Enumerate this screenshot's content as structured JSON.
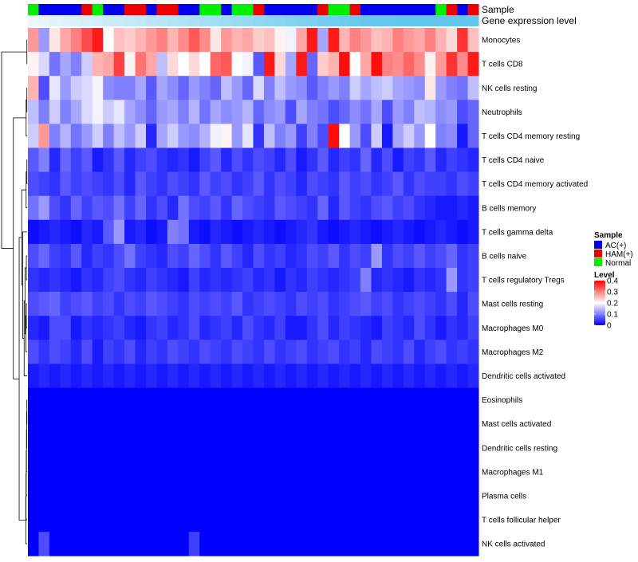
{
  "chart_data": {
    "type": "heatmap",
    "annotation_tracks": [
      "Sample",
      "Gene expression level"
    ],
    "sample_groups": [
      "Normal",
      "AC(+)",
      "AC(+)",
      "AC(+)",
      "AC(+)",
      "HAM(+)",
      "Normal",
      "AC(+)",
      "AC(+)",
      "HAM(+)",
      "HAM(+)",
      "AC(+)",
      "HAM(+)",
      "HAM(+)",
      "AC(+)",
      "AC(+)",
      "Normal",
      "Normal",
      "AC(+)",
      "Normal",
      "Normal",
      "HAM(+)",
      "AC(+)",
      "AC(+)",
      "AC(+)",
      "AC(+)",
      "AC(+)",
      "HAM(+)",
      "Normal",
      "Normal",
      "HAM(+)",
      "AC(+)",
      "AC(+)",
      "AC(+)",
      "AC(+)",
      "AC(+)",
      "AC(+)",
      "AC(+)",
      "Normal",
      "HAM(+)",
      "AC(+)",
      "HAM(+)"
    ],
    "expression_levels": [
      0.05,
      0.08,
      0.11,
      0.14,
      0.17,
      0.2,
      0.23,
      0.26,
      0.29,
      0.32,
      0.35,
      0.38,
      0.41,
      0.44,
      0.47,
      0.5,
      0.53,
      0.56,
      0.59,
      0.62,
      0.65,
      0.68,
      0.71,
      0.74,
      0.77,
      0.8,
      0.83,
      0.86,
      0.89,
      0.92,
      0.95,
      0.97,
      0.98,
      0.98,
      0.99,
      0.99,
      1.0,
      1.0,
      1.0,
      1.0,
      1.0,
      1.0
    ],
    "rows": [
      {
        "label": "Monocytes",
        "mean": 0.25,
        "cells": [
          0.28,
          0.12,
          0.22,
          0.27,
          0.3,
          0.34,
          0.38,
          0.2,
          0.25,
          0.24,
          0.26,
          0.28,
          0.3,
          0.26,
          0.29,
          0.33,
          0.29,
          0.22,
          0.28,
          0.26,
          0.27,
          0.24,
          0.25,
          0.21,
          0.19,
          0.27,
          0.38,
          0.13,
          0.38,
          0.26,
          0.3,
          0.28,
          0.25,
          0.26,
          0.3,
          0.28,
          0.27,
          0.3,
          0.26,
          0.23,
          0.36,
          0.25
        ]
      },
      {
        "label": "T cells CD8",
        "mean": 0.25,
        "cells": [
          0.21,
          0.17,
          0.09,
          0.13,
          0.1,
          0.16,
          0.26,
          0.27,
          0.35,
          0.21,
          0.31,
          0.27,
          0.15,
          0.23,
          0.2,
          0.23,
          0.2,
          0.32,
          0.33,
          0.2,
          0.19,
          0.07,
          0.38,
          0.23,
          0.13,
          0.38,
          0.08,
          0.24,
          0.26,
          0.39,
          0.2,
          0.27,
          0.39,
          0.3,
          0.29,
          0.32,
          0.29,
          0.21,
          0.28,
          0.36,
          0.29,
          0.38
        ]
      },
      {
        "label": "NK cells resting",
        "mean": 0.13,
        "cells": [
          0.26,
          0.06,
          0.18,
          0.12,
          0.16,
          0.17,
          0.19,
          0.11,
          0.1,
          0.1,
          0.13,
          0.07,
          0.13,
          0.11,
          0.08,
          0.12,
          0.1,
          0.08,
          0.15,
          0.12,
          0.08,
          0.17,
          0.1,
          0.15,
          0.12,
          0.11,
          0.07,
          0.1,
          0.12,
          0.1,
          0.16,
          0.13,
          0.15,
          0.16,
          0.13,
          0.12,
          0.11,
          0.22,
          0.12,
          0.1,
          0.09,
          0.15
        ]
      },
      {
        "label": "Neutrophils",
        "mean": 0.13,
        "cells": [
          0.15,
          0.1,
          0.16,
          0.1,
          0.13,
          0.17,
          0.19,
          0.16,
          0.18,
          0.13,
          0.11,
          0.08,
          0.12,
          0.13,
          0.1,
          0.14,
          0.09,
          0.13,
          0.11,
          0.12,
          0.14,
          0.08,
          0.11,
          0.12,
          0.06,
          0.13,
          0.1,
          0.09,
          0.06,
          0.08,
          0.11,
          0.09,
          0.13,
          0.06,
          0.12,
          0.1,
          0.15,
          0.14,
          0.11,
          0.12,
          0.06,
          0.08
        ]
      },
      {
        "label": "T cells CD4 memory resting",
        "mean": 0.12,
        "cells": [
          0.16,
          0.28,
          0.1,
          0.14,
          0.09,
          0.12,
          0.16,
          0.1,
          0.15,
          0.12,
          0.16,
          0.03,
          0.13,
          0.16,
          0.12,
          0.11,
          0.14,
          0.19,
          0.21,
          0.12,
          0.18,
          0.04,
          0.15,
          0.1,
          0.12,
          0.05,
          0.1,
          0.06,
          0.39,
          0.2,
          0.12,
          0.06,
          0.16,
          0.02,
          0.13,
          0.16,
          0.12,
          0.2,
          0.1,
          0.11,
          0.02,
          0.08
        ]
      },
      {
        "label": "T cells CD4 naive",
        "mean": 0.05,
        "cells": [
          0.07,
          0.1,
          0.03,
          0.08,
          0.05,
          0.07,
          0.02,
          0.04,
          0.07,
          0.03,
          0.05,
          0.06,
          0.04,
          0.03,
          0.04,
          0.02,
          0.05,
          0.07,
          0.03,
          0.06,
          0.04,
          0.06,
          0.05,
          0.03,
          0.06,
          0.02,
          0.04,
          0.07,
          0.03,
          0.05,
          0.04,
          0.08,
          0.03,
          0.06,
          0.02,
          0.05,
          0.04,
          0.07,
          0.03,
          0.05,
          0.04,
          0.03
        ]
      },
      {
        "label": "T cells CD4 memory activated",
        "mean": 0.05,
        "cells": [
          0.06,
          0.05,
          0.04,
          0.07,
          0.05,
          0.06,
          0.05,
          0.04,
          0.06,
          0.03,
          0.07,
          0.05,
          0.04,
          0.06,
          0.05,
          0.04,
          0.07,
          0.05,
          0.06,
          0.04,
          0.05,
          0.07,
          0.04,
          0.06,
          0.05,
          0.03,
          0.06,
          0.05,
          0.04,
          0.07,
          0.05,
          0.06,
          0.04,
          0.05,
          0.07,
          0.04,
          0.06,
          0.05,
          0.05,
          0.04,
          0.06,
          0.05
        ]
      },
      {
        "label": "B cells memory",
        "mean": 0.06,
        "cells": [
          0.09,
          0.12,
          0.06,
          0.04,
          0.08,
          0.05,
          0.07,
          0.06,
          0.09,
          0.05,
          0.08,
          0.04,
          0.06,
          0.03,
          0.09,
          0.06,
          0.05,
          0.07,
          0.04,
          0.08,
          0.06,
          0.05,
          0.04,
          0.07,
          0.06,
          0.05,
          0.04,
          0.08,
          0.03,
          0.07,
          0.05,
          0.04,
          0.06,
          0.07,
          0.05,
          0.06,
          0.04,
          0.03,
          0.02,
          0.02,
          0.03,
          0.02
        ]
      },
      {
        "label": "T cells gamma delta",
        "mean": 0.02,
        "cells": [
          0.01,
          0.02,
          0.03,
          0.02,
          0.01,
          0.03,
          0.02,
          0.07,
          0.12,
          0.02,
          0.03,
          0.01,
          0.02,
          0.1,
          0.09,
          0.02,
          0.01,
          0.03,
          0.02,
          0.01,
          0.02,
          0.03,
          0.02,
          0.01,
          0.02,
          0.03,
          0.04,
          0.02,
          0.01,
          0.02,
          0.03,
          0.02,
          0.01,
          0.02,
          0.03,
          0.02,
          0.01,
          0.02,
          0.03,
          0.02,
          0.01,
          0.02
        ]
      },
      {
        "label": "B cells naive",
        "mean": 0.04,
        "cells": [
          0.06,
          0.08,
          0.05,
          0.04,
          0.07,
          0.03,
          0.05,
          0.04,
          0.06,
          0.09,
          0.05,
          0.04,
          0.03,
          0.06,
          0.05,
          0.08,
          0.06,
          0.04,
          0.07,
          0.05,
          0.03,
          0.06,
          0.04,
          0.05,
          0.03,
          0.04,
          0.06,
          0.05,
          0.07,
          0.04,
          0.06,
          0.05,
          0.12,
          0.04,
          0.06,
          0.05,
          0.07,
          0.05,
          0.06,
          0.08,
          0.04,
          0.05
        ]
      },
      {
        "label": "T cells regulatory  Tregs",
        "mean": 0.03,
        "cells": [
          0.04,
          0.03,
          0.04,
          0.03,
          0.02,
          0.04,
          0.03,
          0.05,
          0.06,
          0.04,
          0.03,
          0.05,
          0.04,
          0.03,
          0.02,
          0.05,
          0.03,
          0.04,
          0.03,
          0.04,
          0.05,
          0.03,
          0.04,
          0.02,
          0.04,
          0.03,
          0.05,
          0.04,
          0.03,
          0.04,
          0.05,
          0.1,
          0.03,
          0.04,
          0.03,
          0.02,
          0.04,
          0.03,
          0.04,
          0.12,
          0.04,
          0.05
        ]
      },
      {
        "label": "Mast cells resting",
        "mean": 0.05,
        "cells": [
          0.06,
          0.07,
          0.08,
          0.05,
          0.06,
          0.07,
          0.05,
          0.06,
          0.04,
          0.06,
          0.05,
          0.07,
          0.06,
          0.05,
          0.04,
          0.06,
          0.05,
          0.06,
          0.05,
          0.07,
          0.04,
          0.05,
          0.06,
          0.05,
          0.04,
          0.06,
          0.05,
          0.06,
          0.04,
          0.05,
          0.06,
          0.07,
          0.05,
          0.06,
          0.04,
          0.05,
          0.06,
          0.05,
          0.04,
          0.06,
          0.03,
          0.06
        ]
      },
      {
        "label": "Macrophages M0",
        "mean": 0.04,
        "cells": [
          0.03,
          0.02,
          0.06,
          0.06,
          0.02,
          0.04,
          0.03,
          0.04,
          0.05,
          0.03,
          0.02,
          0.04,
          0.05,
          0.03,
          0.04,
          0.06,
          0.03,
          0.04,
          0.05,
          0.03,
          0.06,
          0.04,
          0.03,
          0.05,
          0.02,
          0.02,
          0.04,
          0.06,
          0.03,
          0.05,
          0.04,
          0.03,
          0.02,
          0.05,
          0.04,
          0.03,
          0.06,
          0.04,
          0.02,
          0.04,
          0.03,
          0.05
        ]
      },
      {
        "label": "Macrophages M2",
        "mean": 0.05,
        "cells": [
          0.06,
          0.04,
          0.06,
          0.05,
          0.03,
          0.06,
          0.02,
          0.05,
          0.04,
          0.06,
          0.03,
          0.05,
          0.04,
          0.06,
          0.05,
          0.04,
          0.06,
          0.05,
          0.04,
          0.06,
          0.05,
          0.04,
          0.06,
          0.04,
          0.05,
          0.06,
          0.04,
          0.05,
          0.06,
          0.04,
          0.05,
          0.03,
          0.06,
          0.05,
          0.04,
          0.06,
          0.03,
          0.05,
          0.06,
          0.04,
          0.05,
          0.04
        ]
      },
      {
        "label": "Dendritic cells activated",
        "mean": 0.03,
        "cells": [
          0.02,
          0.03,
          0.02,
          0.03,
          0.02,
          0.03,
          0.02,
          0.03,
          0.02,
          0.03,
          0.02,
          0.03,
          0.02,
          0.03,
          0.02,
          0.03,
          0.02,
          0.03,
          0.02,
          0.03,
          0.02,
          0.03,
          0.02,
          0.03,
          0.02,
          0.03,
          0.02,
          0.03,
          0.02,
          0.03,
          0.02,
          0.03,
          0.02,
          0.03,
          0.02,
          0.03,
          0.02,
          0.03,
          0.02,
          0.03,
          0.02,
          0.03
        ]
      },
      {
        "label": "Eosinophils",
        "mean": 0.0,
        "cells": [
          0,
          0,
          0,
          0,
          0,
          0,
          0,
          0,
          0,
          0,
          0,
          0,
          0,
          0,
          0,
          0,
          0,
          0,
          0,
          0,
          0,
          0,
          0,
          0,
          0,
          0,
          0,
          0,
          0,
          0,
          0,
          0,
          0,
          0,
          0,
          0,
          0,
          0,
          0,
          0,
          0,
          0
        ]
      },
      {
        "label": "Mast cells activated",
        "mean": 0.0,
        "cells": [
          0,
          0,
          0,
          0,
          0,
          0,
          0,
          0,
          0,
          0,
          0,
          0,
          0,
          0,
          0,
          0,
          0,
          0,
          0,
          0,
          0,
          0,
          0,
          0,
          0,
          0,
          0,
          0,
          0,
          0,
          0,
          0,
          0,
          0,
          0,
          0,
          0,
          0,
          0,
          0,
          0,
          0
        ]
      },
      {
        "label": "Dendritic cells resting",
        "mean": 0.0,
        "cells": [
          0,
          0,
          0,
          0,
          0,
          0,
          0,
          0,
          0,
          0,
          0,
          0,
          0,
          0,
          0,
          0,
          0,
          0,
          0,
          0,
          0,
          0,
          0,
          0,
          0,
          0,
          0,
          0,
          0,
          0,
          0,
          0,
          0,
          0,
          0,
          0,
          0,
          0,
          0,
          0,
          0,
          0
        ]
      },
      {
        "label": "Macrophages M1",
        "mean": 0.0,
        "cells": [
          0,
          0,
          0,
          0,
          0,
          0,
          0,
          0,
          0,
          0,
          0,
          0,
          0,
          0,
          0,
          0,
          0,
          0,
          0,
          0,
          0,
          0,
          0,
          0,
          0,
          0,
          0,
          0,
          0,
          0,
          0,
          0,
          0,
          0,
          0,
          0,
          0,
          0,
          0,
          0,
          0,
          0
        ]
      },
      {
        "label": "Plasma cells",
        "mean": 0.0,
        "cells": [
          0,
          0,
          0,
          0,
          0,
          0,
          0,
          0,
          0,
          0,
          0,
          0,
          0,
          0,
          0,
          0,
          0,
          0,
          0,
          0,
          0,
          0,
          0,
          0,
          0,
          0,
          0,
          0,
          0,
          0,
          0,
          0,
          0,
          0,
          0,
          0,
          0,
          0,
          0,
          0,
          0,
          0
        ]
      },
      {
        "label": "T cells follicular helper",
        "mean": 0.0,
        "cells": [
          0,
          0,
          0,
          0,
          0,
          0,
          0,
          0,
          0,
          0,
          0,
          0,
          0,
          0,
          0,
          0,
          0,
          0,
          0,
          0,
          0,
          0,
          0,
          0,
          0,
          0,
          0,
          0,
          0,
          0,
          0,
          0,
          0,
          0,
          0,
          0,
          0,
          0,
          0,
          0,
          0,
          0
        ]
      },
      {
        "label": "NK cells activated",
        "mean": 0.0,
        "cells": [
          0,
          0.06,
          0,
          0,
          0,
          0,
          0,
          0,
          0,
          0,
          0,
          0,
          0,
          0,
          0,
          0.05,
          0,
          0,
          0,
          0,
          0,
          0,
          0,
          0,
          0,
          0,
          0,
          0,
          0,
          0,
          0,
          0,
          0,
          0,
          0,
          0,
          0,
          0,
          0,
          0,
          0,
          0
        ]
      }
    ],
    "legend": {
      "sample_title": "Sample",
      "sample_items": [
        {
          "label": "AC(+)",
          "color": "#0000ee"
        },
        {
          "label": "HAM(+)",
          "color": "#ee0000"
        },
        {
          "label": "Normal",
          "color": "#00ee00"
        }
      ],
      "level_title": "Level",
      "level_ticks": [
        0.4,
        0.3,
        0.2,
        0.1,
        0
      ],
      "level_range": [
        0,
        0.4
      ]
    },
    "colors": {
      "low": "#0000ff",
      "mid": "#ffffff",
      "high": "#ff0000",
      "expr_low": "#f2fafe",
      "expr_high": "#63c6ef",
      "dendrogram": "#000000"
    }
  }
}
